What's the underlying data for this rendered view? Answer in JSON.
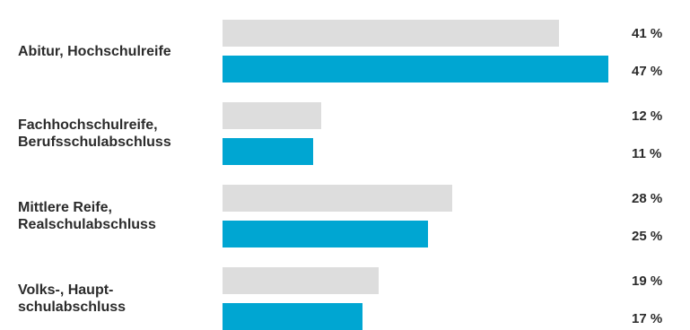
{
  "chart_data": {
    "type": "bar",
    "orientation": "horizontal",
    "categories": [
      "Abitur, Hochschulreife",
      "Fachhochschulreife,\nBerufsschulabschluss",
      "Mittlere Reife,\nRealschulabschluss",
      "Volks-, Haupt-\nschulabschluss"
    ],
    "series": [
      {
        "color": "#dddddd",
        "values": [
          41,
          12,
          28,
          19
        ],
        "labels": [
          "41 %",
          "12 %",
          "28 %",
          "19 %"
        ]
      },
      {
        "color": "#00a6d2",
        "values": [
          47,
          11,
          25,
          17
        ],
        "labels": [
          "47 %",
          "11 %",
          "25 %",
          "17 %"
        ]
      }
    ],
    "xlim": [
      0,
      47
    ],
    "grid": false
  }
}
